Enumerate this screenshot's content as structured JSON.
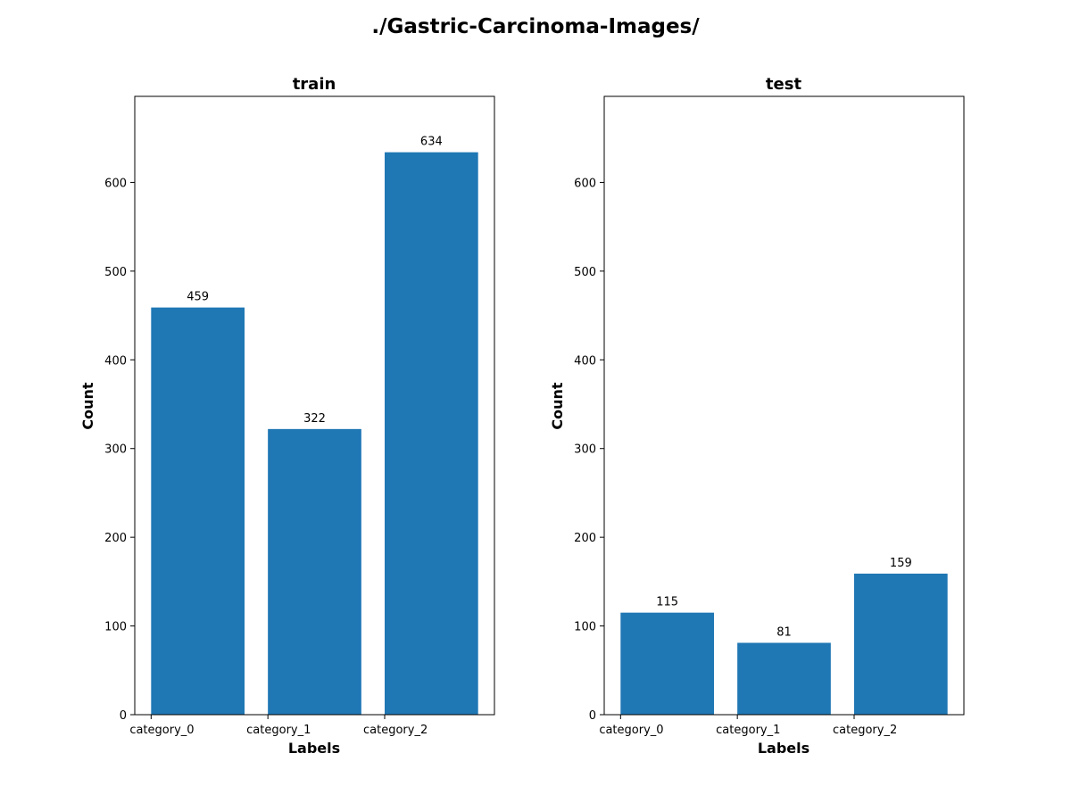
{
  "figure": {
    "title": "./Gastric-Carcinoma-Images/"
  },
  "chart_data": [
    {
      "type": "bar",
      "title": "train",
      "xlabel": "Labels",
      "ylabel": "Count",
      "categories": [
        "category_0",
        "category_1",
        "category_2"
      ],
      "values": [
        459,
        322,
        634
      ],
      "ylim": [
        0,
        697
      ],
      "yticks": [
        0,
        100,
        200,
        300,
        400,
        500,
        600
      ],
      "bar_color": "#1f77b4",
      "grid": false
    },
    {
      "type": "bar",
      "title": "test",
      "xlabel": "Labels",
      "ylabel": "Count",
      "categories": [
        "category_0",
        "category_1",
        "category_2"
      ],
      "values": [
        115,
        81,
        159
      ],
      "ylim": [
        0,
        697
      ],
      "yticks": [
        0,
        100,
        200,
        300,
        400,
        500,
        600
      ],
      "bar_color": "#1f77b4",
      "grid": false
    }
  ]
}
